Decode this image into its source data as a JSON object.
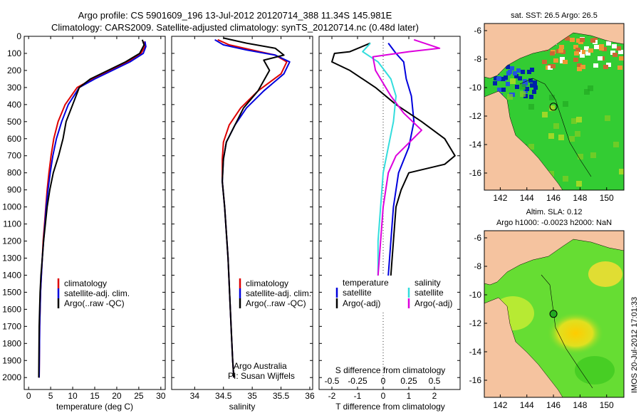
{
  "title_line1": "Argo profile: CS 5901609_196 13-Jul-2012 20120714_388 11.34S 145.981E",
  "title_line2": "Climatology: CARS2009. Satellite-adjusted climatology: synTS_20120714.nc (0.48d later)",
  "side_stamp": "IMOS 20-Jul-2012 17:01:33",
  "colors": {
    "climatology": "#dd0000",
    "satellite": "#0000dd",
    "argo": "#000000",
    "sal_sat": "#33dddd",
    "sal_argo": "#dd00dd",
    "land": "#f5c39f",
    "sea": "#33cc33"
  },
  "chart_data": [
    {
      "id": "temp",
      "type": "line",
      "xlabel": "temperature (deg C)",
      "xlim": [
        -1,
        31
      ],
      "ylim": [
        2070,
        0
      ],
      "xticks": [
        "0",
        "5",
        "10",
        "15",
        "20",
        "25",
        "30"
      ],
      "yticks": [
        "0",
        "100",
        "200",
        "300",
        "400",
        "500",
        "600",
        "700",
        "800",
        "900",
        "1000",
        "1100",
        "1200",
        "1300",
        "1400",
        "1500",
        "1600",
        "1700",
        "1800",
        "1900",
        "2000"
      ],
      "legend": [
        "climatology",
        "satellite-adj. clim.",
        "Argo(..raw -QC)"
      ],
      "series": [
        {
          "name": "climatology",
          "color": "#dd0000",
          "x": [
            26.2,
            26.4,
            25.5,
            22.5,
            18.5,
            14.5,
            11.0,
            8.3,
            6.7,
            5.7,
            5.1,
            4.6,
            4.2,
            3.9,
            3.6,
            3.3,
            3.1,
            2.9,
            2.7,
            2.5,
            2.4
          ],
          "y": [
            30,
            60,
            100,
            150,
            200,
            250,
            300,
            400,
            500,
            600,
            700,
            800,
            900,
            1000,
            1100,
            1200,
            1300,
            1400,
            1500,
            1700,
            2000
          ]
        },
        {
          "name": "satellite-adj. clim.",
          "color": "#0000dd",
          "x": [
            26.4,
            26.6,
            26.0,
            23.0,
            19.0,
            15.0,
            11.5,
            9.0,
            7.5,
            6.3,
            5.5,
            4.9,
            4.4,
            4.0,
            3.7,
            3.4,
            3.1,
            2.9,
            2.7,
            2.5,
            2.4
          ],
          "y": [
            30,
            60,
            100,
            150,
            200,
            250,
            300,
            400,
            500,
            600,
            700,
            800,
            900,
            1000,
            1100,
            1200,
            1300,
            1400,
            1500,
            1700,
            2000
          ]
        },
        {
          "name": "Argo(..raw -QC)",
          "color": "#000000",
          "x": [
            25.8,
            26.2,
            25.2,
            22.0,
            18.0,
            14.0,
            11.5,
            10.0,
            8.5,
            7.8,
            6.8,
            5.6,
            4.8,
            4.2,
            3.8,
            3.4,
            3.1,
            2.8,
            2.6,
            2.4,
            2.3
          ],
          "y": [
            20,
            50,
            100,
            150,
            200,
            250,
            300,
            400,
            500,
            600,
            700,
            800,
            900,
            1000,
            1100,
            1200,
            1300,
            1400,
            1500,
            1700,
            2000
          ]
        }
      ]
    },
    {
      "id": "sal",
      "type": "line",
      "xlabel": "salinity",
      "xlim": [
        33.6,
        36.05
      ],
      "ylim": [
        2070,
        0
      ],
      "xticks": [
        "34",
        "34.5",
        "35",
        "35.5",
        "36"
      ],
      "legend": [
        "climatology",
        "satellite-adj. clim.",
        "Argo(..raw -QC)"
      ],
      "annotations": [
        "Argo Australia",
        "PI: Susan Wijffels"
      ],
      "series": [
        {
          "name": "climatology",
          "color": "#dd0000",
          "x": [
            34.4,
            34.6,
            35.0,
            35.4,
            35.6,
            35.5,
            35.1,
            34.8,
            34.6,
            34.5,
            34.48,
            34.48,
            34.52,
            34.55,
            34.58,
            34.6,
            34.62,
            34.64,
            34.66,
            34.68
          ],
          "y": [
            20,
            50,
            80,
            110,
            150,
            220,
            320,
            420,
            520,
            620,
            720,
            850,
            1000,
            1150,
            1300,
            1450,
            1600,
            1750,
            1900,
            2000
          ]
        },
        {
          "name": "satellite-adj. clim.",
          "color": "#0000dd",
          "x": [
            34.35,
            34.5,
            34.9,
            35.4,
            35.65,
            35.55,
            35.2,
            34.9,
            34.7,
            34.55,
            34.5,
            34.48,
            34.52,
            34.55,
            34.58,
            34.6,
            34.62,
            34.64,
            34.66,
            34.68
          ],
          "y": [
            20,
            50,
            80,
            110,
            150,
            220,
            320,
            420,
            520,
            620,
            720,
            850,
            1000,
            1150,
            1300,
            1450,
            1600,
            1750,
            1900,
            2000
          ]
        },
        {
          "name": "Argo(..raw -QC)",
          "color": "#000000",
          "x": [
            34.5,
            34.9,
            35.4,
            35.55,
            35.2,
            35.3,
            35.1,
            34.85,
            34.7,
            34.55,
            34.5,
            34.48,
            34.52,
            34.55,
            34.58,
            34.6,
            34.62,
            34.64,
            34.66,
            34.68
          ],
          "y": [
            10,
            40,
            70,
            110,
            140,
            200,
            320,
            420,
            520,
            620,
            720,
            850,
            1000,
            1150,
            1300,
            1450,
            1600,
            1750,
            1900,
            2000
          ]
        }
      ]
    },
    {
      "id": "diff",
      "type": "line",
      "xlabel": "T difference from climatology",
      "xlabel_top": "S difference from climatology",
      "xlim": [
        -2.5,
        3.0
      ],
      "ylim": [
        2070,
        0
      ],
      "xticks": [
        "-2",
        "-1",
        "0",
        "1",
        "2"
      ],
      "xticks_top": [
        "-0.5",
        "-0.25",
        "0",
        "0.25",
        "0.5"
      ],
      "legend_headers": [
        "temperature",
        "salinity"
      ],
      "legend": [
        "satellite",
        "Argo(-adj)",
        "satellite",
        "Argo(-adj)"
      ],
      "series": [
        {
          "name": "temperature satellite",
          "color": "#0000dd",
          "x": [
            0.2,
            0.5,
            0.8,
            0.9,
            1.1,
            1.2,
            1.0,
            0.6,
            0.4,
            0.3,
            0.2,
            0.1
          ],
          "y": [
            40,
            100,
            150,
            250,
            350,
            500,
            650,
            800,
            1000,
            1200,
            1400,
            1600
          ]
        },
        {
          "name": "temperature Argo(-adj)",
          "color": "#000000",
          "x": [
            -0.5,
            -1.3,
            -1.9,
            -2.0,
            -1.3,
            -0.3,
            0.5,
            1.5,
            2.4,
            2.8,
            2.4,
            1.0,
            0.7,
            0.5,
            0.4,
            0.3,
            0.25
          ],
          "y": [
            40,
            90,
            100,
            150,
            200,
            300,
            400,
            500,
            600,
            700,
            750,
            800,
            900,
            1000,
            1200,
            1400,
            1600
          ]
        },
        {
          "name": "salinity satellite",
          "color": "#33dddd",
          "x": [
            -0.5,
            -0.8,
            -0.2,
            0.3,
            0.5,
            0.4,
            0.2,
            0.0,
            -0.1,
            -0.2,
            -0.2,
            -0.25
          ],
          "y": [
            40,
            90,
            150,
            250,
            350,
            500,
            650,
            800,
            1000,
            1200,
            1400,
            1600
          ]
        },
        {
          "name": "salinity Argo(-adj)",
          "color": "#dd00dd",
          "x": [
            1.2,
            2.2,
            1.0,
            -0.4,
            -0.3,
            0.3,
            0.8,
            1.5,
            0.5,
            0.2,
            0.0,
            -0.1,
            -0.2,
            -0.25
          ],
          "y": [
            20,
            70,
            90,
            120,
            200,
            350,
            450,
            550,
            700,
            800,
            1000,
            1200,
            1400,
            1600
          ]
        }
      ]
    },
    {
      "id": "map_sst",
      "type": "heatmap",
      "title": "sat. SST: 26.5 Argo: 26.5",
      "xlim": [
        140.8,
        151.3
      ],
      "ylim": [
        -17.2,
        -5.5
      ],
      "xticks": [
        "142",
        "144",
        "146",
        "148",
        "150"
      ],
      "yticks": [
        "-6",
        "-8",
        "-10",
        "-12",
        "-14",
        "-16"
      ],
      "marker": {
        "lon": 146.0,
        "lat": -11.34
      }
    },
    {
      "id": "map_sla",
      "type": "heatmap",
      "title_line1": "Altim. SLA: 0.12",
      "title_line2": "Argo h1000: -0.0023 h2000: NaN",
      "xlim": [
        140.8,
        151.3
      ],
      "ylim": [
        -17.2,
        -5.5
      ],
      "xticks": [
        "142",
        "144",
        "146",
        "148",
        "150"
      ],
      "yticks": [
        "-6",
        "-8",
        "-10",
        "-12",
        "-14",
        "-16"
      ],
      "marker": {
        "lon": 146.0,
        "lat": -11.34
      }
    }
  ]
}
